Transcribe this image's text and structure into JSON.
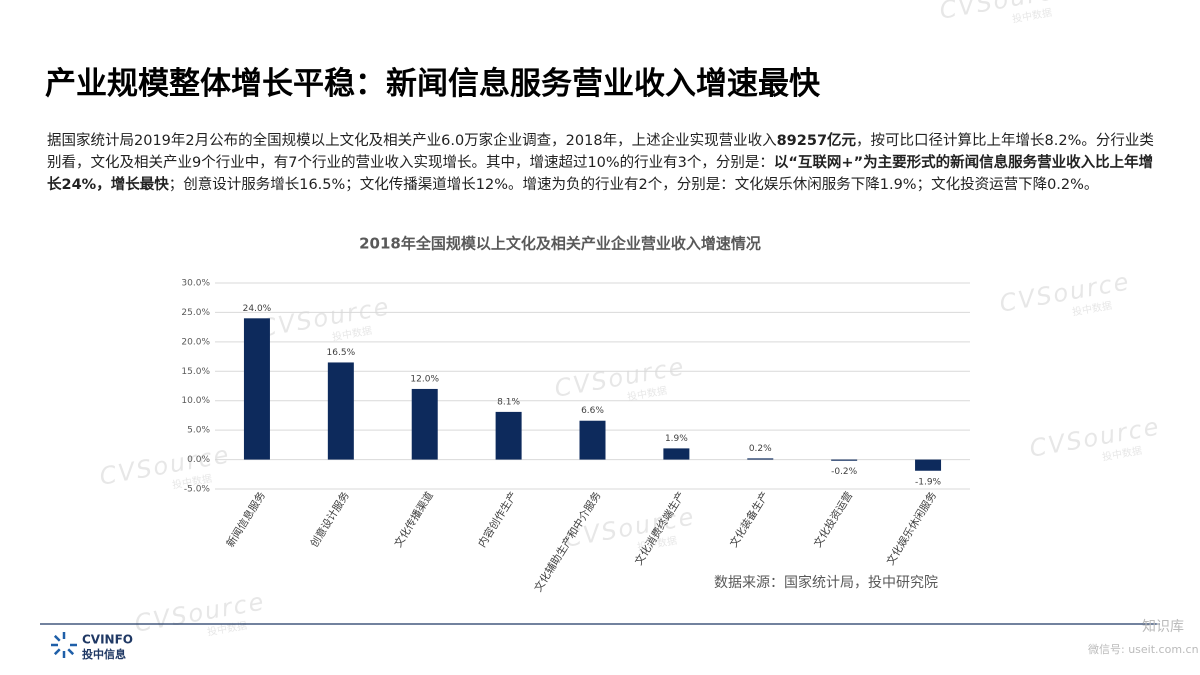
{
  "header": {
    "title": "产业规模整体增长平稳：新闻信息服务营业收入增速最快"
  },
  "paragraph": [
    {
      "text": "据国家统计局2019年2月公布的全国规模以上文化及相关产业6.0万家企业调查，2018年，上述企业实现营业收入",
      "bold": false
    },
    {
      "text": "89257亿元",
      "bold": true
    },
    {
      "text": "，按可比口径计算比上年增长8.2%。分行业类别看，文化及相关产业9个行业中，有7个行业的营业收入实现增长。其中，增速超过10%的行业有3个，分别是：",
      "bold": false
    },
    {
      "text": "以“互联网+”为主要形式的新闻信息服务营业收入比上年增长24%，增长最快",
      "bold": true
    },
    {
      "text": "；创意设计服务增长16.5%；文化传播渠道增长12%。增速为负的行业有2个，分别是：文化娱乐休闲服务下降1.9%；文化投资运营下降0.2%。",
      "bold": false
    }
  ],
  "chart_data": {
    "type": "bar",
    "title": "2018年全国规模以上文化及相关产业企业营业收入增速情况",
    "categories": [
      "新闻信息服务",
      "创意设计服务",
      "文化传播渠道",
      "内容创作生产",
      "文化辅助生产和中介服务",
      "文化消费终端生产",
      "文化装备生产",
      "文化投资运营",
      "文化娱乐休闲服务"
    ],
    "values": [
      24.0,
      16.5,
      12.0,
      8.1,
      6.6,
      1.9,
      0.2,
      -0.2,
      -1.9
    ],
    "value_labels": [
      "24.0%",
      "16.5%",
      "12.0%",
      "8.1%",
      "6.6%",
      "1.9%",
      "0.2%",
      "-0.2%",
      "-1.9%"
    ],
    "color": "#0d2a5c",
    "ylim": [
      -5,
      30
    ],
    "yticks": [
      {
        "value": -5,
        "label": "-5.0%"
      },
      {
        "value": 0,
        "label": "0.0%"
      },
      {
        "value": 5,
        "label": "5.0%"
      },
      {
        "value": 10,
        "label": "10.0%"
      },
      {
        "value": 15,
        "label": "15.0%"
      },
      {
        "value": 20,
        "label": "20.0%"
      },
      {
        "value": 25,
        "label": "25.0%"
      },
      {
        "value": 30,
        "label": "30.0%"
      }
    ],
    "grid": true
  },
  "source": "数据来源：国家统计局，投中研究院",
  "logo": {
    "name": "CVINFO",
    "sub": "投中信息"
  },
  "watermark": {
    "brand": "CVSource",
    "sub": "投中数据"
  },
  "badge": {
    "name": "知识库",
    "sub": "微信号: useit.com.cn"
  }
}
